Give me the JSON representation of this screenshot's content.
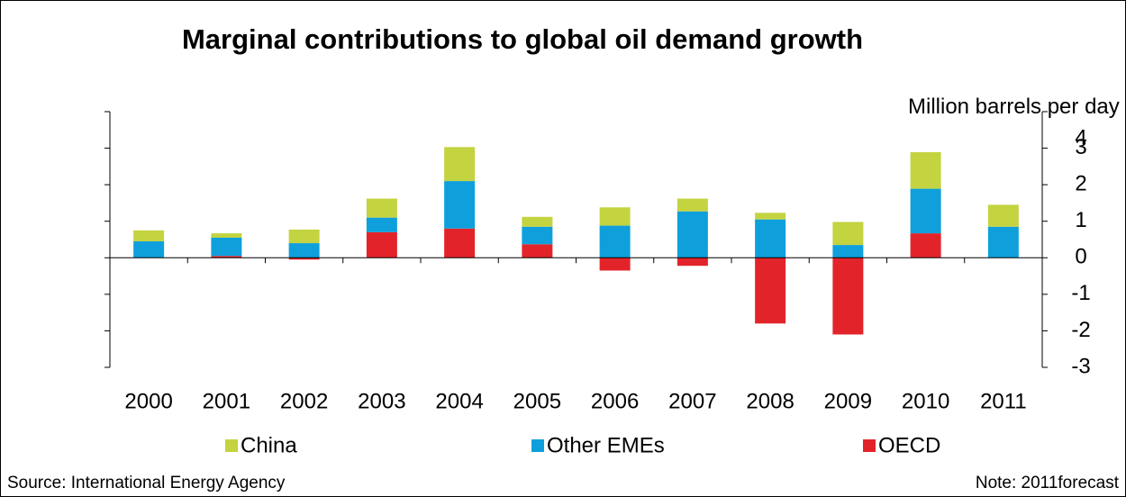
{
  "chart_data": {
    "type": "stacked_bar",
    "title": "Marginal contributions to global oil demand growth",
    "y_label": "Million barrels per day",
    "categories": [
      "2000",
      "2001",
      "2002",
      "2003",
      "2004",
      "2005",
      "2006",
      "2007",
      "2008",
      "2009",
      "2010",
      "2011"
    ],
    "series": [
      {
        "name": "OECD",
        "color": "#e2242a",
        "values": [
          0,
          0.05,
          -0.05,
          0.7,
          0.8,
          0.37,
          -0.35,
          -0.22,
          -1.8,
          -2.1,
          0.67,
          0
        ]
      },
      {
        "name": "Other EMEs",
        "color": "#0fa0dc",
        "values": [
          0.45,
          0.5,
          0.4,
          0.4,
          1.3,
          0.48,
          0.88,
          1.27,
          1.05,
          0.35,
          1.22,
          0.85
        ]
      },
      {
        "name": "China",
        "color": "#c4d340",
        "values": [
          0.3,
          0.12,
          0.37,
          0.52,
          0.93,
          0.27,
          0.5,
          0.35,
          0.18,
          0.63,
          1.0,
          0.6
        ]
      }
    ],
    "ylim": [
      -3,
      4
    ],
    "yticks": [
      -3,
      -2,
      -1,
      0,
      1,
      2,
      3,
      4
    ],
    "source": "Source: International Energy Agency",
    "note": "Note: 2011forecast"
  }
}
